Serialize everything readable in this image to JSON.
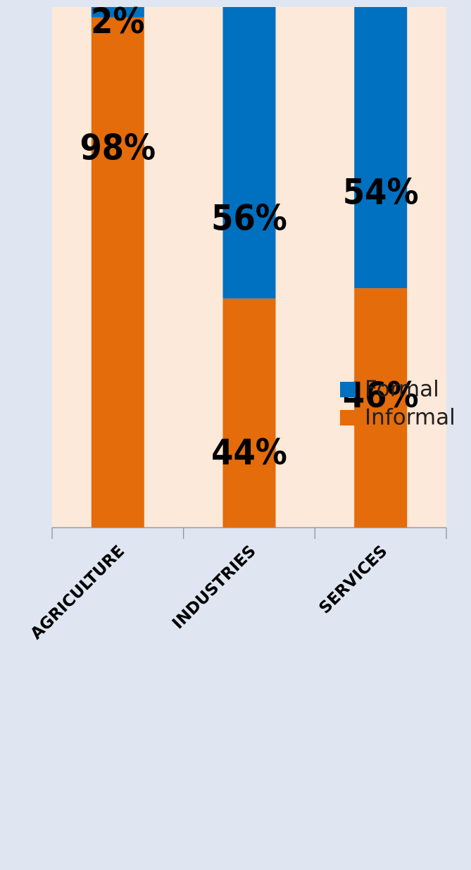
{
  "chart_data": {
    "type": "bar",
    "stacked": true,
    "percent_stacked": true,
    "categories": [
      "AGRICULTURE",
      "INDUSTRIES",
      "SERVICES"
    ],
    "series": [
      {
        "name": "Informal",
        "values": [
          98,
          44,
          46
        ],
        "labels": [
          "98%",
          "44%",
          "46%"
        ],
        "color": "#e46c0a"
      },
      {
        "name": "Formal",
        "values": [
          2,
          56,
          54
        ],
        "labels": [
          "2%",
          "56%",
          "54%"
        ],
        "color": "#0070c0"
      }
    ],
    "ylim": [
      0,
      100
    ],
    "legend": {
      "position": "right",
      "order": [
        "Formal",
        "Informal"
      ]
    },
    "plot_background": "#fde9d9",
    "page_background": "#dfe6f2",
    "grid": false
  }
}
